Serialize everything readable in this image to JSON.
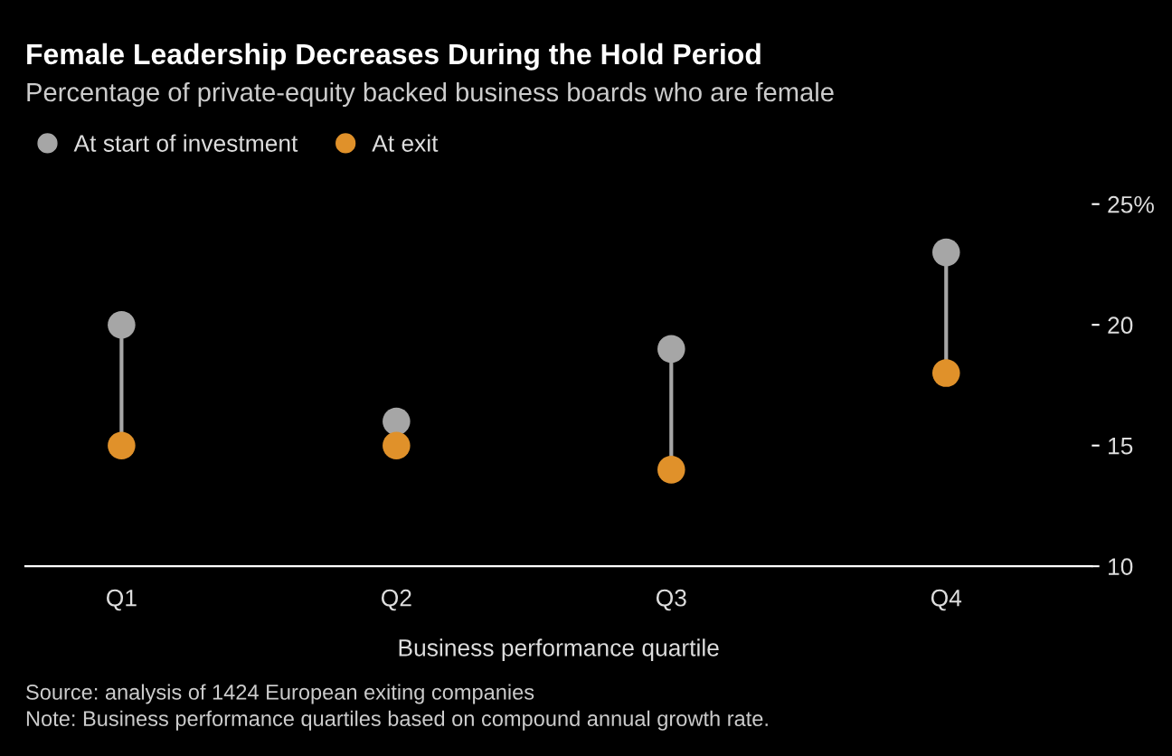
{
  "chart_data": {
    "type": "scatter",
    "title": "Female Leadership Decreases During the Hold Period",
    "subtitle": "Percentage of private-equity backed business boards who are female",
    "xlabel": "Business performance quartile",
    "categories": [
      "Q1",
      "Q2",
      "Q3",
      "Q4"
    ],
    "series": [
      {
        "name": "At start of investment",
        "color": "#a6a6a6",
        "values": [
          20.0,
          16.0,
          19.0,
          23.0
        ]
      },
      {
        "name": "At exit",
        "color": "#e0912a",
        "values": [
          15.0,
          15.0,
          14.0,
          18.0
        ]
      }
    ],
    "ylim": [
      10,
      25
    ],
    "yticks": [
      10,
      15,
      20,
      {
        "value": 25,
        "label": "25%"
      }
    ],
    "marker": "circle",
    "legend": "top left",
    "grid": false,
    "annotations": [
      "Source: analysis of 1424 European exiting companies",
      "Note: Business performance quartiles based on compound annual growth rate."
    ]
  }
}
